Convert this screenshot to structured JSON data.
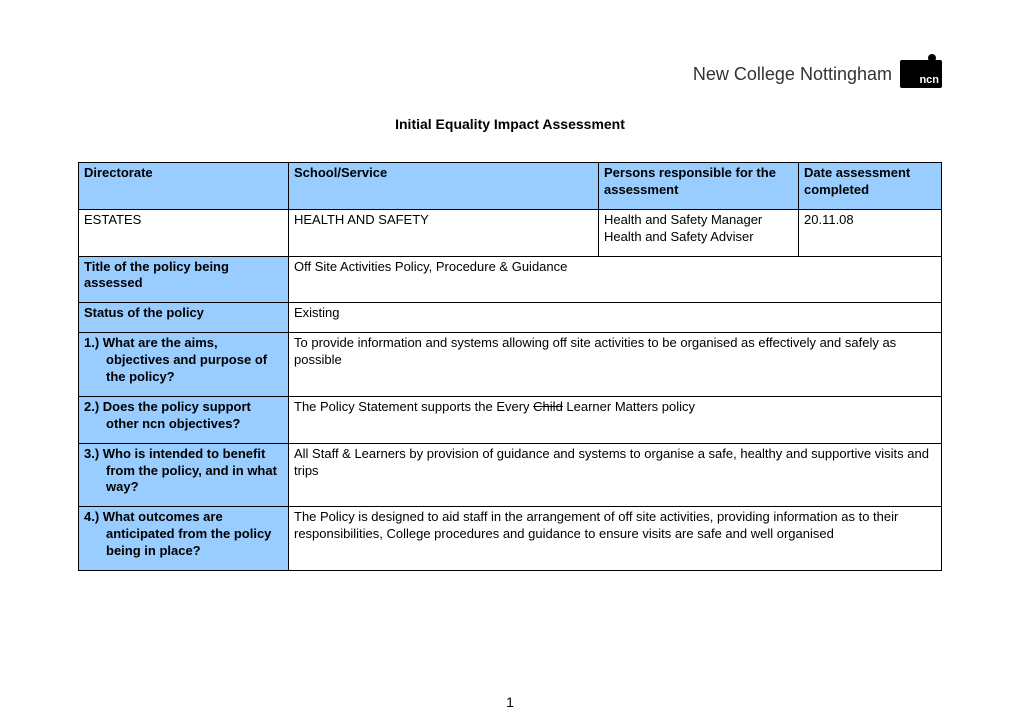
{
  "logo": {
    "text": "New College Nottingham",
    "abbr": "ncn"
  },
  "title": "Initial Equality Impact Assessment",
  "headers": {
    "directorate": "Directorate",
    "school": "School/Service",
    "persons": "Persons responsible for the assessment",
    "date": "Date assessment completed"
  },
  "row_top": {
    "directorate": "ESTATES",
    "school": "HEALTH AND SAFETY",
    "persons_line1": "Health and Safety Manager",
    "persons_line2": "Health and Safety Adviser",
    "date": "20.11.08"
  },
  "rows": {
    "r1_label": "Title of the policy being assessed",
    "r1_value": "Off Site Activities Policy, Procedure & Guidance",
    "r2_label": "Status of the policy",
    "r2_value": "Existing",
    "r3_label_a": "1.) What are the aims,",
    "r3_label_b": "objectives and purpose of the policy?",
    "r3_value": "To provide information and systems allowing off site activities to be organised as effectively and safely as possible",
    "r4_label_a": "2.) Does the policy support",
    "r4_label_b": "other ncn objectives?",
    "r4_value_pre": "The Policy Statement supports the Every ",
    "r4_value_strike": "Child",
    "r4_value_post": " Learner Matters policy",
    "r5_label_a": "3.) Who is intended to benefit",
    "r5_label_b": "from the policy, and in what way?",
    "r5_value": "All Staff & Learners by provision of guidance and systems to organise a safe, healthy and supportive visits and trips",
    "r6_label_a": "4.) What outcomes are",
    "r6_label_b": "anticipated from the policy being in place?",
    "r6_value": "The Policy is designed to aid staff in the arrangement of off site activities, providing information as to their responsibilities, College procedures and guidance to ensure visits are safe and well organised"
  },
  "page_number": "1",
  "colors": {
    "header_bg": "#99ccff",
    "border": "#000000",
    "text": "#000000"
  }
}
